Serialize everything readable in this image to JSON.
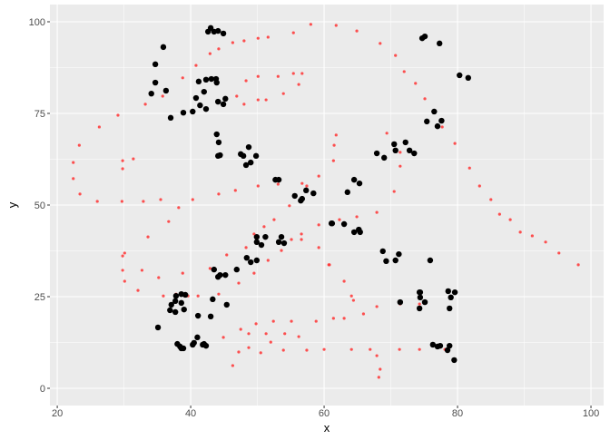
{
  "chart_data": {
    "type": "scatter",
    "title": "",
    "xlabel": "x",
    "ylabel": "y",
    "xlim": [
      18.9,
      101.9
    ],
    "ylim": [
      -4.7,
      104.7
    ],
    "grid": true,
    "legend": "none",
    "x_ticks": [
      "20",
      "40",
      "60",
      "80",
      "100"
    ],
    "y_ticks": [
      "0",
      "25",
      "50",
      "75",
      "100"
    ],
    "x_tick_values": [
      20,
      40,
      60,
      80,
      100
    ],
    "y_tick_values": [
      0,
      25,
      50,
      75,
      100
    ],
    "colors": {
      "panel": "#ebebeb",
      "grid": "#ffffff",
      "series_black": "#000000",
      "series_red": "#ff3333"
    },
    "series": [
      {
        "color": "#000000",
        "points": [
          [
            43.0,
            98.3
          ],
          [
            42.6,
            97.3
          ],
          [
            43.5,
            97.3
          ],
          [
            44.1,
            97.5
          ],
          [
            44.9,
            96.8
          ],
          [
            35.9,
            93.1
          ],
          [
            34.7,
            88.4
          ],
          [
            34.7,
            83.4
          ],
          [
            34.1,
            80.4
          ],
          [
            36.3,
            81.2
          ],
          [
            37.0,
            73.8
          ],
          [
            38.9,
            75.2
          ],
          [
            40.3,
            75.5
          ],
          [
            40.8,
            79.2
          ],
          [
            41.4,
            77.2
          ],
          [
            42.3,
            76.2
          ],
          [
            42.0,
            80.9
          ],
          [
            41.2,
            83.7
          ],
          [
            42.3,
            84.2
          ],
          [
            43.1,
            84.4
          ],
          [
            43.8,
            84.4
          ],
          [
            43.9,
            83.4
          ],
          [
            44.1,
            78.2
          ],
          [
            44.9,
            77.5
          ],
          [
            45.2,
            79.0
          ],
          [
            43.9,
            69.3
          ],
          [
            44.2,
            67.1
          ],
          [
            44.1,
            63.4
          ],
          [
            44.4,
            63.6
          ],
          [
            48.7,
            65.8
          ],
          [
            47.5,
            63.9
          ],
          [
            47.9,
            63.4
          ],
          [
            49.8,
            63.4
          ],
          [
            49.0,
            61.6
          ],
          [
            48.3,
            60.9
          ],
          [
            52.7,
            56.9
          ],
          [
            53.2,
            56.9
          ],
          [
            55.6,
            52.5
          ],
          [
            57.3,
            54.0
          ],
          [
            58.4,
            53.2
          ],
          [
            56.7,
            51.7
          ],
          [
            56.5,
            51.2
          ],
          [
            61.1,
            45.0
          ],
          [
            49.9,
            41.3
          ],
          [
            51.2,
            41.3
          ],
          [
            49.9,
            39.9
          ],
          [
            50.6,
            39.1
          ],
          [
            53.6,
            41.3
          ],
          [
            53.2,
            39.9
          ],
          [
            54.0,
            39.6
          ],
          [
            48.4,
            35.6
          ],
          [
            49.0,
            34.4
          ],
          [
            49.9,
            34.9
          ],
          [
            46.9,
            32.4
          ],
          [
            43.5,
            32.4
          ],
          [
            44.1,
            30.4
          ],
          [
            44.4,
            30.9
          ],
          [
            45.2,
            30.9
          ],
          [
            37.8,
            25.2
          ],
          [
            38.6,
            25.7
          ],
          [
            39.2,
            25.5
          ],
          [
            37.7,
            23.8
          ],
          [
            37.1,
            22.8
          ],
          [
            36.9,
            21.3
          ],
          [
            37.7,
            20.8
          ],
          [
            38.6,
            23.3
          ],
          [
            39.0,
            21.5
          ],
          [
            43.3,
            24.3
          ],
          [
            45.4,
            22.8
          ],
          [
            41.1,
            19.8
          ],
          [
            43.0,
            19.6
          ],
          [
            35.1,
            16.6
          ],
          [
            38.0,
            12.1
          ],
          [
            38.4,
            11.4
          ],
          [
            38.6,
            10.9
          ],
          [
            38.9,
            10.9
          ],
          [
            40.3,
            11.9
          ],
          [
            40.5,
            12.4
          ],
          [
            41.0,
            13.9
          ],
          [
            41.8,
            11.9
          ],
          [
            42.3,
            11.6
          ],
          [
            42.0,
            12.1
          ],
          [
            61.2,
            45.0
          ],
          [
            63.0,
            44.8
          ],
          [
            64.5,
            42.6
          ],
          [
            65.2,
            43.3
          ],
          [
            65.4,
            42.6
          ],
          [
            68.8,
            37.4
          ],
          [
            69.3,
            34.7
          ],
          [
            70.7,
            34.9
          ],
          [
            71.2,
            36.6
          ],
          [
            75.9,
            34.9
          ],
          [
            74.3,
            26.2
          ],
          [
            74.4,
            26.2
          ],
          [
            74.4,
            24.8
          ],
          [
            75.1,
            23.5
          ],
          [
            74.3,
            21.8
          ],
          [
            71.4,
            23.5
          ],
          [
            78.6,
            26.5
          ],
          [
            79.6,
            26.2
          ],
          [
            79.0,
            24.8
          ],
          [
            78.8,
            21.8
          ],
          [
            76.3,
            11.9
          ],
          [
            77.0,
            11.4
          ],
          [
            77.4,
            11.6
          ],
          [
            78.8,
            11.6
          ],
          [
            78.5,
            10.4
          ],
          [
            79.5,
            7.7
          ],
          [
            74.7,
            95.5
          ],
          [
            75.1,
            96.0
          ],
          [
            77.3,
            94.1
          ],
          [
            80.3,
            85.4
          ],
          [
            81.6,
            84.7
          ],
          [
            76.5,
            75.5
          ],
          [
            75.4,
            72.8
          ],
          [
            77.6,
            73.0
          ],
          [
            77.0,
            71.5
          ],
          [
            70.5,
            66.6
          ],
          [
            72.2,
            67.1
          ],
          [
            70.7,
            64.9
          ],
          [
            72.8,
            64.9
          ],
          [
            73.5,
            64.1
          ],
          [
            67.9,
            64.1
          ],
          [
            69.0,
            62.9
          ],
          [
            64.5,
            56.9
          ],
          [
            65.3,
            55.9
          ],
          [
            63.5,
            53.5
          ]
        ]
      },
      {
        "color": "#ff3333",
        "points": [
          [
            58.0,
            99.3
          ],
          [
            55.4,
            97.0
          ],
          [
            51.6,
            95.8
          ],
          [
            50.1,
            95.5
          ],
          [
            48.0,
            94.8
          ],
          [
            46.3,
            94.3
          ],
          [
            44.2,
            92.6
          ],
          [
            42.9,
            91.3
          ],
          [
            40.8,
            88.1
          ],
          [
            38.8,
            84.7
          ],
          [
            48.3,
            83.9
          ],
          [
            50.1,
            85.1
          ],
          [
            53.1,
            85.1
          ],
          [
            55.4,
            85.9
          ],
          [
            56.7,
            85.9
          ],
          [
            56.2,
            82.9
          ],
          [
            53.9,
            80.4
          ],
          [
            51.3,
            78.7
          ],
          [
            50.1,
            78.7
          ],
          [
            48.0,
            77.5
          ],
          [
            46.9,
            79.7
          ],
          [
            35.8,
            79.7
          ],
          [
            33.2,
            77.5
          ],
          [
            29.1,
            74.5
          ],
          [
            26.3,
            71.3
          ],
          [
            23.3,
            66.3
          ],
          [
            22.4,
            61.6
          ],
          [
            22.4,
            57.2
          ],
          [
            23.4,
            53.0
          ],
          [
            26.0,
            51.0
          ],
          [
            29.7,
            51.0
          ],
          [
            32.9,
            51.0
          ],
          [
            35.5,
            51.5
          ],
          [
            40.3,
            51.5
          ],
          [
            29.8,
            62.1
          ],
          [
            29.8,
            59.9
          ],
          [
            31.4,
            62.6
          ],
          [
            44.2,
            53.0
          ],
          [
            46.7,
            54.0
          ],
          [
            50.1,
            55.2
          ],
          [
            53.1,
            55.7
          ],
          [
            56.7,
            55.9
          ],
          [
            57.4,
            55.2
          ],
          [
            59.2,
            57.9
          ],
          [
            54.8,
            49.8
          ],
          [
            38.2,
            49.3
          ],
          [
            61.8,
            99.0
          ],
          [
            64.9,
            97.5
          ],
          [
            68.4,
            94.1
          ],
          [
            70.7,
            90.8
          ],
          [
            72.0,
            86.4
          ],
          [
            73.7,
            83.2
          ],
          [
            75.1,
            79.0
          ],
          [
            77.7,
            71.3
          ],
          [
            79.6,
            66.8
          ],
          [
            81.8,
            60.1
          ],
          [
            83.3,
            55.2
          ],
          [
            85.0,
            51.5
          ],
          [
            69.4,
            69.6
          ],
          [
            61.8,
            69.1
          ],
          [
            61.5,
            66.3
          ],
          [
            61.4,
            62.1
          ],
          [
            71.4,
            64.4
          ],
          [
            71.4,
            60.6
          ],
          [
            70.5,
            53.7
          ],
          [
            36.7,
            45.5
          ],
          [
            33.6,
            41.3
          ],
          [
            30.1,
            36.9
          ],
          [
            29.8,
            36.1
          ],
          [
            29.8,
            32.2
          ],
          [
            30.1,
            29.2
          ],
          [
            32.1,
            26.7
          ],
          [
            32.7,
            32.2
          ],
          [
            35.2,
            30.2
          ],
          [
            38.8,
            31.4
          ],
          [
            35.9,
            25.2
          ],
          [
            37.8,
            25.7
          ],
          [
            39.6,
            25.2
          ],
          [
            41.1,
            25.2
          ],
          [
            44.2,
            25.7
          ],
          [
            42.9,
            32.7
          ],
          [
            45.4,
            36.4
          ],
          [
            47.2,
            28.7
          ],
          [
            48.3,
            38.4
          ],
          [
            49.5,
            42.1
          ],
          [
            51.0,
            44.1
          ],
          [
            52.5,
            46.0
          ],
          [
            49.5,
            31.4
          ],
          [
            51.6,
            34.9
          ],
          [
            53.6,
            37.6
          ],
          [
            56.6,
            42.1
          ],
          [
            55.1,
            40.6
          ],
          [
            56.6,
            40.6
          ],
          [
            59.2,
            44.6
          ],
          [
            59.2,
            38.4
          ],
          [
            60.7,
            33.7
          ],
          [
            44.9,
            13.9
          ],
          [
            47.5,
            16.1
          ],
          [
            48.7,
            14.9
          ],
          [
            49.8,
            17.6
          ],
          [
            52.4,
            18.3
          ],
          [
            51.3,
            14.9
          ],
          [
            52.0,
            12.6
          ],
          [
            54.1,
            14.9
          ],
          [
            55.1,
            18.3
          ],
          [
            56.2,
            14.1
          ],
          [
            58.8,
            18.3
          ],
          [
            47.2,
            9.9
          ],
          [
            48.7,
            11.1
          ],
          [
            50.5,
            9.7
          ],
          [
            53.9,
            10.4
          ],
          [
            57.4,
            10.4
          ],
          [
            60.0,
            10.6
          ],
          [
            46.3,
            6.2
          ],
          [
            62.3,
            46.0
          ],
          [
            64.9,
            46.8
          ],
          [
            67.9,
            48.0
          ],
          [
            86.3,
            47.5
          ],
          [
            87.9,
            46.0
          ],
          [
            89.4,
            42.6
          ],
          [
            91.2,
            41.6
          ],
          [
            93.2,
            39.9
          ],
          [
            95.2,
            36.9
          ],
          [
            98.1,
            33.7
          ],
          [
            60.8,
            33.7
          ],
          [
            63.0,
            29.2
          ],
          [
            64.1,
            25.2
          ],
          [
            64.4,
            24.0
          ],
          [
            65.9,
            20.3
          ],
          [
            67.9,
            22.3
          ],
          [
            61.4,
            19.1
          ],
          [
            63.0,
            19.1
          ],
          [
            71.4,
            23.0
          ],
          [
            74.3,
            23.0
          ],
          [
            64.1,
            10.6
          ],
          [
            66.9,
            10.6
          ],
          [
            71.3,
            10.6
          ],
          [
            74.3,
            10.6
          ],
          [
            78.1,
            10.6
          ],
          [
            67.9,
            8.9
          ],
          [
            68.4,
            5.2
          ],
          [
            68.2,
            3.0
          ]
        ]
      }
    ]
  }
}
